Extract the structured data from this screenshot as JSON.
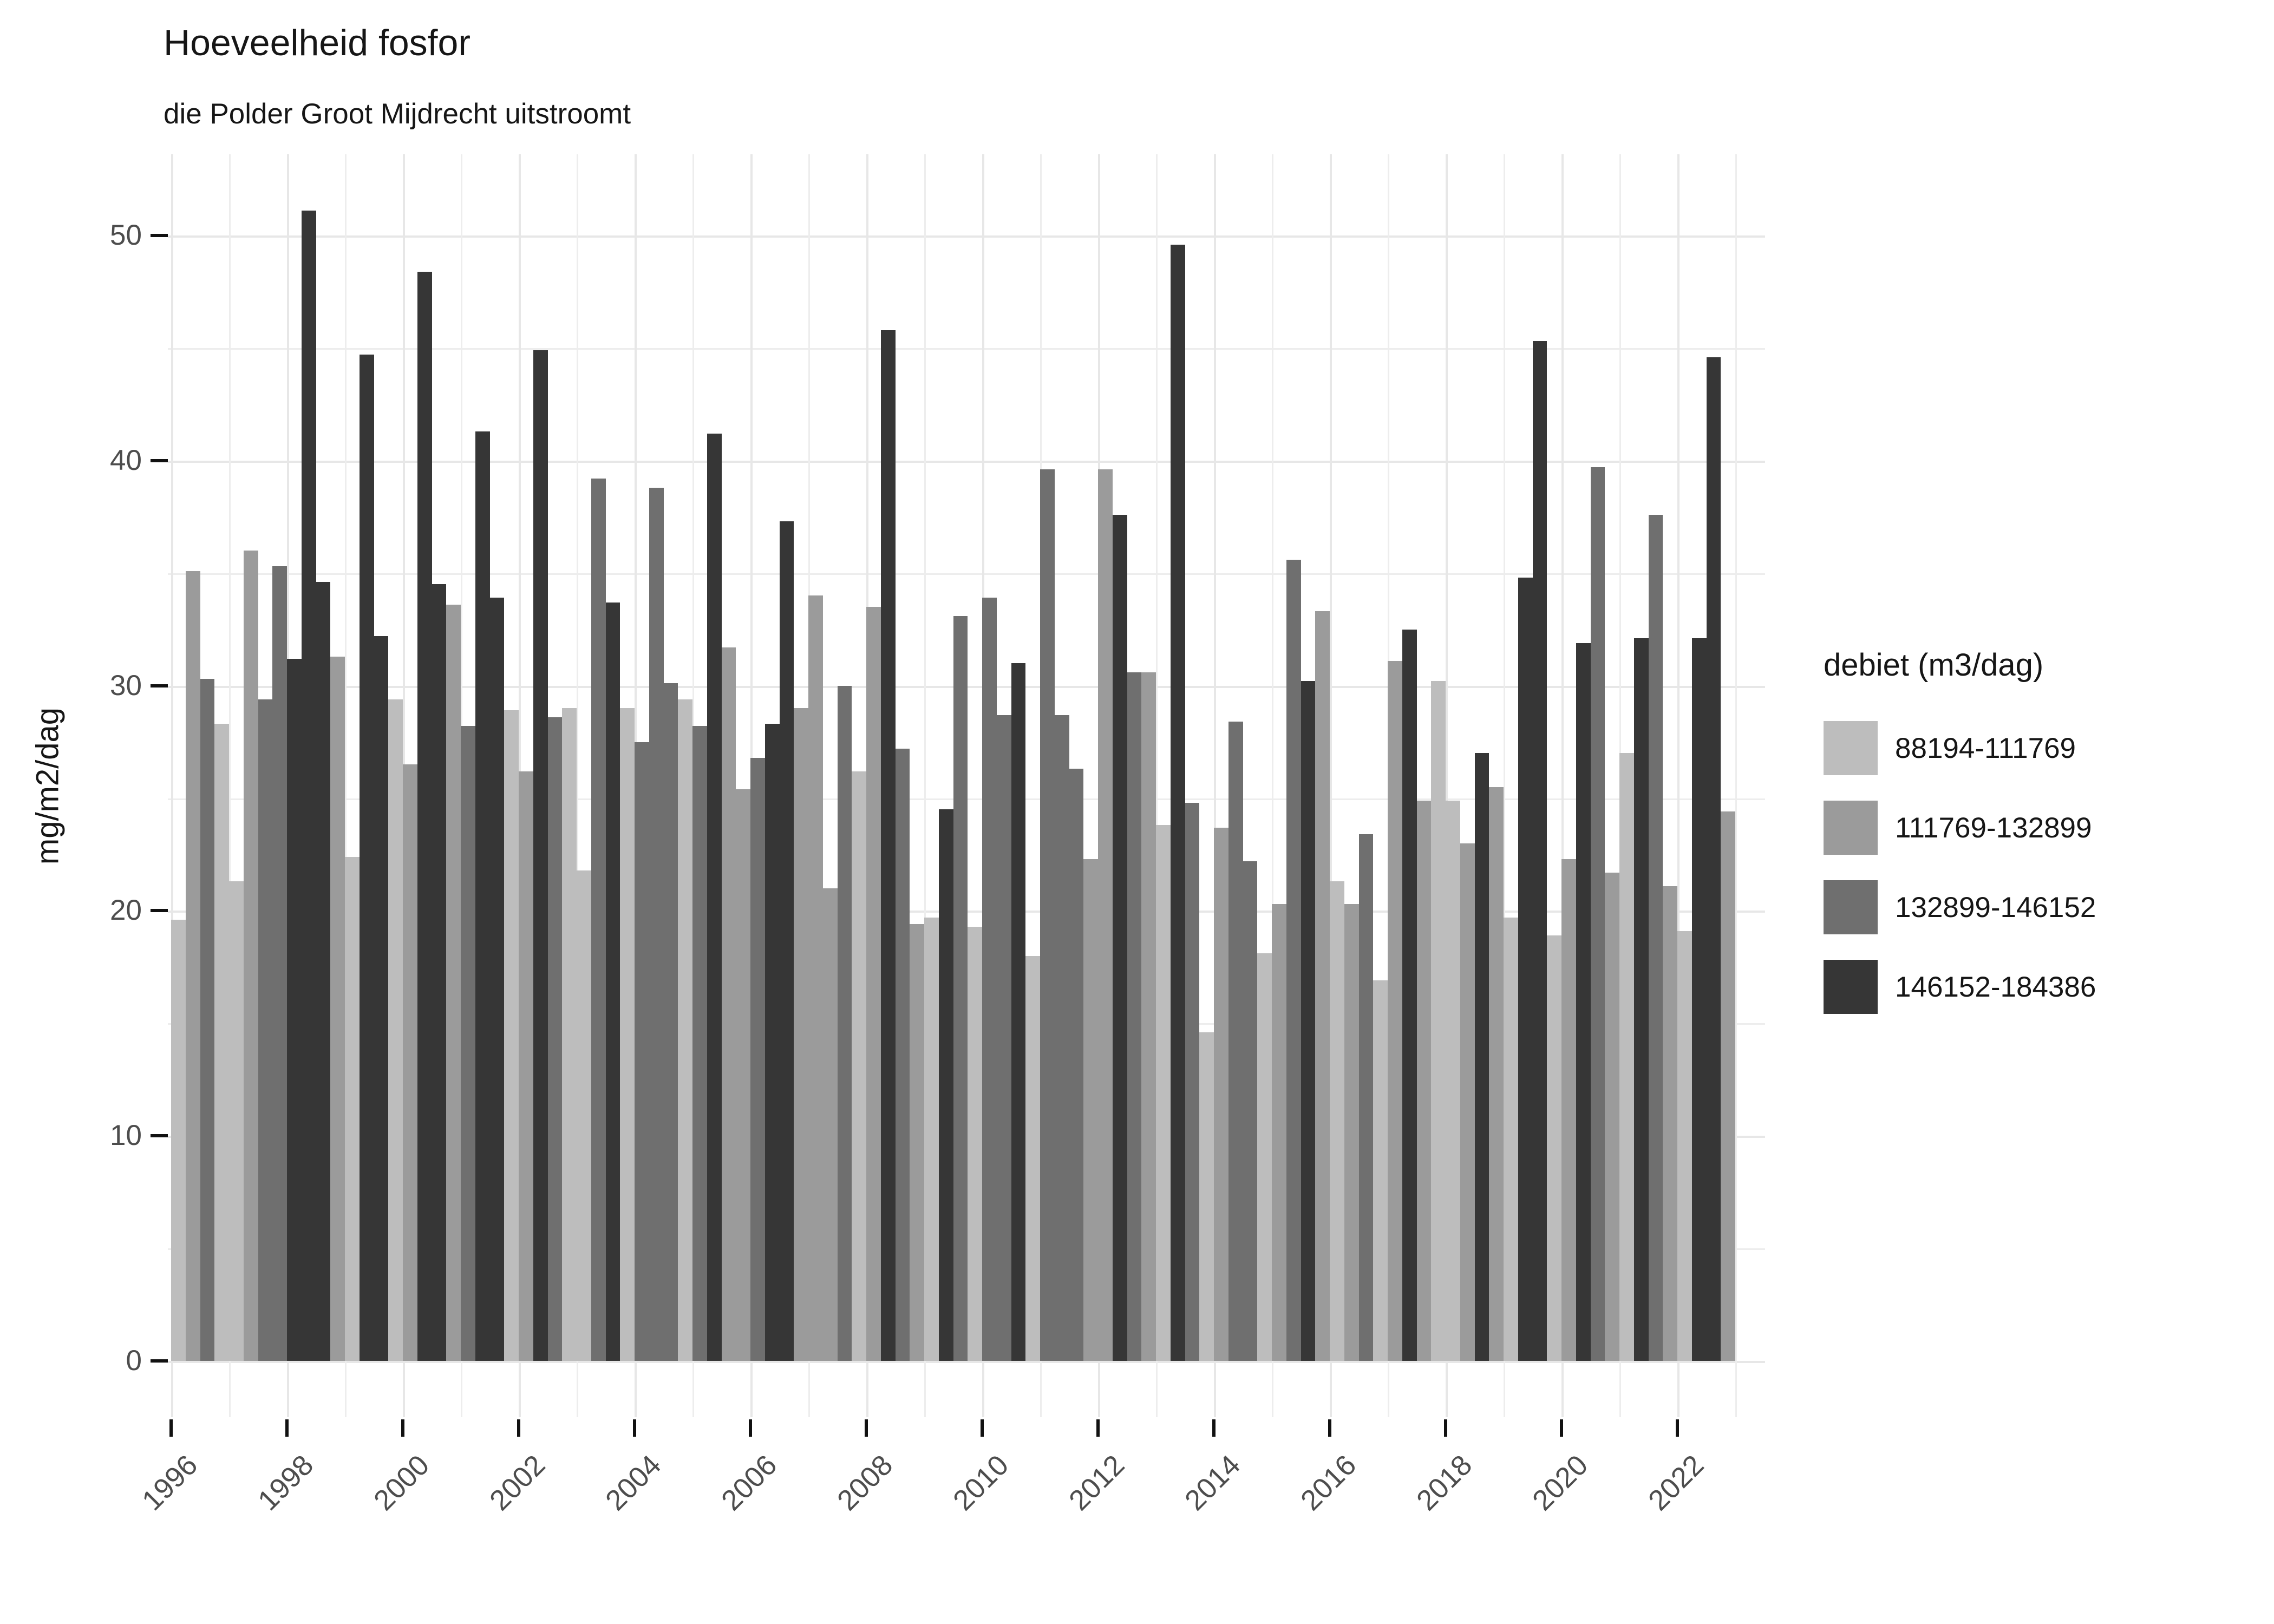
{
  "title": "Hoeveelheid fosfor",
  "subtitle": "die Polder Groot Mijdrecht uitstroomt",
  "y_axis": {
    "label": "mg/m2/dag",
    "ticks": [
      0,
      10,
      20,
      30,
      40,
      50
    ]
  },
  "x_axis": {
    "tick_years": [
      1996,
      1998,
      2000,
      2002,
      2004,
      2006,
      2008,
      2010,
      2012,
      2014,
      2016,
      2018,
      2020,
      2022
    ]
  },
  "legend": {
    "title": "debiet (m3/dag)",
    "items": [
      {
        "key": "L",
        "label": "88194-111769",
        "color": "#bdbdbd"
      },
      {
        "key": "M",
        "label": "111769-132899",
        "color": "#9b9b9b"
      },
      {
        "key": "D",
        "label": "132899-146152",
        "color": "#6f6f6f"
      },
      {
        "key": "K",
        "label": "146152-184386",
        "color": "#363636"
      }
    ]
  },
  "chart_data": {
    "type": "bar",
    "title": "Hoeveelheid fosfor",
    "subtitle": "die Polder Groot Mijdrecht uitstroomt",
    "ylabel": "mg/m2/dag",
    "xlabel": "",
    "ylim": [
      0,
      53
    ],
    "grid": "on",
    "legend_position": "right",
    "fill_classes": {
      "L": {
        "label": "88194-111769",
        "color": "#bdbdbd"
      },
      "M": {
        "label": "111769-132899",
        "color": "#9b9b9b"
      },
      "D": {
        "label": "132899-146152",
        "color": "#6f6f6f"
      },
      "K": {
        "label": "146152-184386",
        "color": "#363636"
      }
    },
    "bar_columns": [
      "year",
      "quarter",
      "debiet_class",
      "value_mg_m2_dag"
    ],
    "bars": [
      [
        1996,
        3,
        "L",
        19.6
      ],
      [
        1996,
        4,
        "M",
        35.1
      ],
      [
        1997,
        1,
        "D",
        30.3
      ],
      [
        1997,
        2,
        "L",
        28.3
      ],
      [
        1997,
        3,
        "L",
        21.3
      ],
      [
        1997,
        4,
        "M",
        36.0
      ],
      [
        1998,
        1,
        "D",
        29.4
      ],
      [
        1998,
        2,
        "D",
        35.3
      ],
      [
        1998,
        3,
        "K",
        31.2
      ],
      [
        1998,
        4,
        "K",
        51.1
      ],
      [
        1999,
        1,
        "K",
        34.6
      ],
      [
        1999,
        2,
        "M",
        31.3
      ],
      [
        1999,
        3,
        "L",
        22.4
      ],
      [
        1999,
        4,
        "K",
        44.7
      ],
      [
        2000,
        1,
        "K",
        32.2
      ],
      [
        2000,
        2,
        "L",
        29.4
      ],
      [
        2000,
        3,
        "M",
        26.5
      ],
      [
        2000,
        4,
        "K",
        48.4
      ],
      [
        2001,
        1,
        "K",
        34.5
      ],
      [
        2001,
        2,
        "M",
        33.6
      ],
      [
        2001,
        3,
        "D",
        28.2
      ],
      [
        2001,
        4,
        "K",
        41.3
      ],
      [
        2002,
        1,
        "K",
        33.9
      ],
      [
        2002,
        2,
        "L",
        28.9
      ],
      [
        2002,
        3,
        "M",
        26.2
      ],
      [
        2002,
        4,
        "K",
        44.9
      ],
      [
        2003,
        1,
        "D",
        28.6
      ],
      [
        2003,
        2,
        "L",
        29.0
      ],
      [
        2003,
        3,
        "L",
        21.8
      ],
      [
        2003,
        4,
        "D",
        39.2
      ],
      [
        2004,
        1,
        "K",
        33.7
      ],
      [
        2004,
        2,
        "L",
        29.0
      ],
      [
        2004,
        3,
        "D",
        27.5
      ],
      [
        2004,
        4,
        "D",
        38.8
      ],
      [
        2005,
        1,
        "D",
        30.1
      ],
      [
        2005,
        2,
        "L",
        29.4
      ],
      [
        2005,
        3,
        "D",
        28.2
      ],
      [
        2005,
        4,
        "K",
        41.2
      ],
      [
        2006,
        1,
        "M",
        31.7
      ],
      [
        2006,
        2,
        "M",
        25.4
      ],
      [
        2006,
        3,
        "D",
        26.8
      ],
      [
        2006,
        4,
        "K",
        28.3
      ],
      [
        2007,
        1,
        "K",
        37.3
      ],
      [
        2007,
        2,
        "M",
        29.0
      ],
      [
        2007,
        3,
        "M",
        34.0
      ],
      [
        2007,
        4,
        "M",
        21.0
      ],
      [
        2008,
        1,
        "D",
        30.0
      ],
      [
        2008,
        2,
        "L",
        26.2
      ],
      [
        2008,
        3,
        "M",
        33.5
      ],
      [
        2008,
        4,
        "K",
        45.8
      ],
      [
        2009,
        1,
        "D",
        27.2
      ],
      [
        2009,
        2,
        "M",
        19.4
      ],
      [
        2009,
        3,
        "L",
        19.7
      ],
      [
        2009,
        4,
        "K",
        24.5
      ],
      [
        2010,
        1,
        "D",
        33.1
      ],
      [
        2010,
        2,
        "L",
        19.3
      ],
      [
        2010,
        3,
        "D",
        33.9
      ],
      [
        2010,
        4,
        "D",
        28.7
      ],
      [
        2011,
        1,
        "K",
        31.0
      ],
      [
        2011,
        2,
        "L",
        18.0
      ],
      [
        2011,
        3,
        "D",
        39.6
      ],
      [
        2011,
        4,
        "D",
        28.7
      ],
      [
        2012,
        1,
        "D",
        26.3
      ],
      [
        2012,
        2,
        "M",
        22.3
      ],
      [
        2012,
        3,
        "M",
        39.6
      ],
      [
        2012,
        4,
        "K",
        37.6
      ],
      [
        2013,
        1,
        "D",
        30.6
      ],
      [
        2013,
        2,
        "M",
        30.6
      ],
      [
        2013,
        3,
        "L",
        23.8
      ],
      [
        2013,
        4,
        "K",
        49.6
      ],
      [
        2014,
        1,
        "D",
        24.8
      ],
      [
        2014,
        2,
        "L",
        14.6
      ],
      [
        2014,
        3,
        "M",
        23.7
      ],
      [
        2014,
        4,
        "D",
        28.4
      ],
      [
        2015,
        1,
        "D",
        22.2
      ],
      [
        2015,
        2,
        "L",
        18.1
      ],
      [
        2015,
        3,
        "M",
        20.3
      ],
      [
        2015,
        4,
        "D",
        35.6
      ],
      [
        2016,
        1,
        "K",
        30.2
      ],
      [
        2016,
        2,
        "M",
        33.3
      ],
      [
        2016,
        3,
        "L",
        21.3
      ],
      [
        2016,
        4,
        "M",
        20.3
      ],
      [
        2017,
        1,
        "D",
        23.4
      ],
      [
        2017,
        2,
        "L",
        16.9
      ],
      [
        2017,
        3,
        "M",
        31.1
      ],
      [
        2017,
        4,
        "K",
        32.5
      ],
      [
        2018,
        1,
        "M",
        24.9
      ],
      [
        2018,
        2,
        "L",
        30.2
      ],
      [
        2018,
        3,
        "L",
        24.9
      ],
      [
        2018,
        4,
        "M",
        23.0
      ],
      [
        2019,
        1,
        "K",
        27.0
      ],
      [
        2019,
        2,
        "M",
        25.5
      ],
      [
        2019,
        3,
        "L",
        19.7
      ],
      [
        2019,
        4,
        "K",
        34.8
      ],
      [
        2020,
        1,
        "K",
        45.3
      ],
      [
        2020,
        2,
        "L",
        18.9
      ],
      [
        2020,
        3,
        "M",
        22.3
      ],
      [
        2020,
        4,
        "K",
        31.9
      ],
      [
        2021,
        1,
        "D",
        39.7
      ],
      [
        2021,
        2,
        "M",
        21.7
      ],
      [
        2021,
        3,
        "L",
        27.0
      ],
      [
        2021,
        4,
        "K",
        32.1
      ],
      [
        2022,
        1,
        "D",
        37.6
      ],
      [
        2022,
        2,
        "M",
        21.1
      ],
      [
        2022,
        3,
        "L",
        19.1
      ],
      [
        2022,
        4,
        "K",
        32.1
      ],
      [
        2023,
        1,
        "K",
        44.6
      ],
      [
        2023,
        2,
        "M",
        24.4
      ]
    ]
  }
}
